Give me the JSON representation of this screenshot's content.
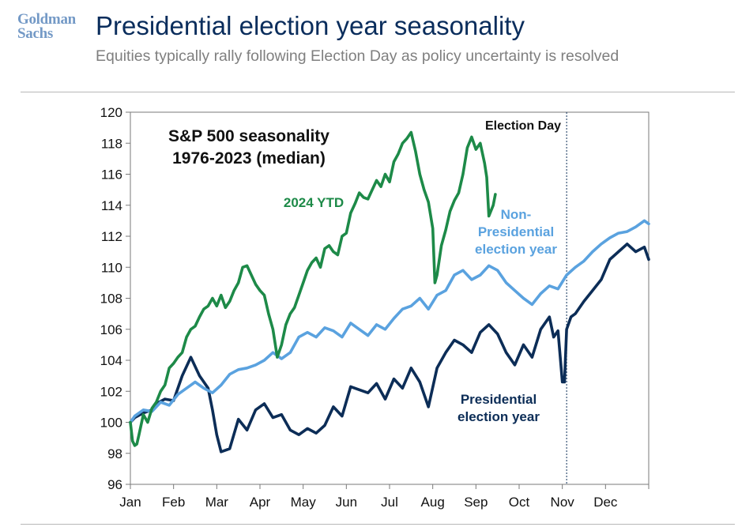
{
  "header": {
    "logo_line1": "Goldman",
    "logo_line2": "Sachs",
    "title": "Presidential election year seasonality",
    "subtitle": "Equities typically rally following Election Day as policy uncertainty is resolved"
  },
  "colors": {
    "presidential": "#0c2d57",
    "non_presidential": "#5aa2df",
    "ytd_2024": "#1d8a48",
    "title": "#0a2d5c",
    "subtitle": "#7f7f7f"
  },
  "chart_data": {
    "type": "line",
    "title": "S&P 500 seasonality",
    "title_line2": "1976-2023 (median)",
    "xlabel": "",
    "ylabel": "",
    "ylim": [
      96,
      120
    ],
    "yticks": [
      96,
      98,
      100,
      102,
      104,
      106,
      108,
      110,
      112,
      114,
      116,
      118,
      120
    ],
    "xlim": [
      1,
      13
    ],
    "month_ticks": [
      "Jan",
      "Feb",
      "Mar",
      "Apr",
      "May",
      "Jun",
      "Jul",
      "Aug",
      "Sep",
      "Oct",
      "Nov",
      "Dec"
    ],
    "grid": false,
    "annotations": {
      "election_day": "Election Day",
      "election_day_x": 11.1,
      "ytd_label": "2024 YTD",
      "non_pres_label": [
        "Non-",
        "Presidential",
        "election year"
      ],
      "pres_label": [
        "Presidential",
        "election year"
      ]
    },
    "series": [
      {
        "name": "Presidential election year",
        "color_key": "presidential",
        "x": [
          1.0,
          1.1,
          1.3,
          1.5,
          1.6,
          1.8,
          2.0,
          2.2,
          2.4,
          2.6,
          2.8,
          2.9,
          3.0,
          3.1,
          3.3,
          3.5,
          3.7,
          3.9,
          4.1,
          4.3,
          4.5,
          4.7,
          4.9,
          5.1,
          5.3,
          5.5,
          5.7,
          5.9,
          6.1,
          6.3,
          6.5,
          6.7,
          6.9,
          7.1,
          7.3,
          7.5,
          7.7,
          7.9,
          8.1,
          8.3,
          8.5,
          8.7,
          8.9,
          9.1,
          9.3,
          9.5,
          9.7,
          9.9,
          10.1,
          10.3,
          10.5,
          10.7,
          10.8,
          10.9,
          11.0,
          11.05,
          11.1,
          11.2,
          11.3,
          11.5,
          11.7,
          11.9,
          12.1,
          12.3,
          12.5,
          12.7,
          12.9,
          13.0
        ],
        "values": [
          100.0,
          100.3,
          100.6,
          100.8,
          101.2,
          101.5,
          101.4,
          103.0,
          104.2,
          103.0,
          102.2,
          100.8,
          99.2,
          98.1,
          98.3,
          100.2,
          99.5,
          100.8,
          101.2,
          100.3,
          100.5,
          99.5,
          99.2,
          99.6,
          99.3,
          99.8,
          101.0,
          100.4,
          102.3,
          102.1,
          101.9,
          102.5,
          101.5,
          102.8,
          102.2,
          103.5,
          102.6,
          101.0,
          103.5,
          104.5,
          105.3,
          105.0,
          104.5,
          105.8,
          106.3,
          105.7,
          104.5,
          103.7,
          105.0,
          104.2,
          106.0,
          106.8,
          105.5,
          105.9,
          102.6,
          102.6,
          106.0,
          106.8,
          107.0,
          107.8,
          108.5,
          109.2,
          110.5,
          111.0,
          111.5,
          111.0,
          111.3,
          110.5
        ]
      },
      {
        "name": "Non-Presidential election year",
        "color_key": "non_presidential",
        "x": [
          1.0,
          1.1,
          1.3,
          1.5,
          1.7,
          1.9,
          2.1,
          2.3,
          2.5,
          2.7,
          2.9,
          3.1,
          3.3,
          3.5,
          3.7,
          3.9,
          4.1,
          4.3,
          4.5,
          4.7,
          4.9,
          5.1,
          5.3,
          5.5,
          5.7,
          5.9,
          6.1,
          6.3,
          6.5,
          6.7,
          6.9,
          7.1,
          7.3,
          7.5,
          7.7,
          7.9,
          8.1,
          8.3,
          8.5,
          8.7,
          8.9,
          9.1,
          9.3,
          9.5,
          9.7,
          9.9,
          10.1,
          10.3,
          10.5,
          10.7,
          10.9,
          11.1,
          11.3,
          11.5,
          11.7,
          11.9,
          12.1,
          12.3,
          12.5,
          12.7,
          12.9,
          13.0
        ],
        "values": [
          100.0,
          100.4,
          100.8,
          100.7,
          101.3,
          101.1,
          101.8,
          102.2,
          102.6,
          102.2,
          101.9,
          102.4,
          103.1,
          103.4,
          103.5,
          103.7,
          104.0,
          104.5,
          104.1,
          104.5,
          105.5,
          105.8,
          105.5,
          106.1,
          105.9,
          105.5,
          106.4,
          106.0,
          105.6,
          106.3,
          106.0,
          106.7,
          107.3,
          107.5,
          108.0,
          107.3,
          108.2,
          108.5,
          109.5,
          109.8,
          109.2,
          109.5,
          110.1,
          109.8,
          109.0,
          108.5,
          108.0,
          107.6,
          108.3,
          108.8,
          108.6,
          109.5,
          110.0,
          110.4,
          111.0,
          111.5,
          111.9,
          112.2,
          112.3,
          112.6,
          113.0,
          112.8
        ]
      },
      {
        "name": "2024 YTD",
        "color_key": "ytd_2024",
        "x": [
          1.0,
          1.05,
          1.1,
          1.15,
          1.2,
          1.3,
          1.4,
          1.5,
          1.6,
          1.7,
          1.8,
          1.9,
          2.0,
          2.1,
          2.2,
          2.3,
          2.4,
          2.5,
          2.6,
          2.7,
          2.8,
          2.9,
          3.0,
          3.1,
          3.2,
          3.3,
          3.4,
          3.5,
          3.6,
          3.7,
          3.8,
          3.9,
          4.0,
          4.1,
          4.2,
          4.3,
          4.4,
          4.5,
          4.6,
          4.7,
          4.8,
          4.9,
          5.0,
          5.1,
          5.2,
          5.3,
          5.4,
          5.5,
          5.6,
          5.7,
          5.8,
          5.9,
          6.0,
          6.1,
          6.2,
          6.3,
          6.4,
          6.5,
          6.6,
          6.7,
          6.8,
          6.9,
          7.0,
          7.1,
          7.2,
          7.3,
          7.4,
          7.5,
          7.6,
          7.7,
          7.8,
          7.9,
          8.0,
          8.05,
          8.1,
          8.2,
          8.3,
          8.4,
          8.5,
          8.6,
          8.7,
          8.8,
          8.9,
          9.0,
          9.1,
          9.2,
          9.25,
          9.3,
          9.4,
          9.45
        ],
        "values": [
          100.0,
          98.8,
          98.5,
          98.6,
          99.2,
          100.5,
          100.0,
          100.9,
          101.3,
          102.0,
          102.4,
          103.5,
          103.8,
          104.2,
          104.5,
          105.5,
          106.0,
          106.2,
          106.8,
          107.3,
          107.5,
          108.0,
          107.5,
          108.2,
          107.4,
          107.8,
          108.5,
          109.0,
          110.0,
          110.1,
          109.5,
          108.9,
          108.5,
          108.2,
          107.0,
          106.0,
          104.2,
          105.0,
          106.3,
          107.0,
          107.4,
          108.2,
          109.0,
          109.8,
          110.3,
          110.6,
          110.0,
          111.2,
          111.4,
          111.0,
          110.8,
          112.0,
          112.2,
          113.5,
          114.1,
          114.8,
          114.5,
          114.4,
          115.0,
          115.6,
          115.2,
          116.0,
          115.5,
          116.8,
          117.3,
          118.0,
          118.3,
          118.7,
          117.5,
          116.0,
          115.0,
          114.2,
          112.5,
          109.0,
          109.5,
          111.4,
          112.4,
          113.6,
          114.3,
          114.8,
          116.0,
          117.7,
          118.4,
          117.6,
          118.0,
          116.7,
          115.8,
          113.3,
          114.0,
          114.7
        ]
      }
    ]
  }
}
